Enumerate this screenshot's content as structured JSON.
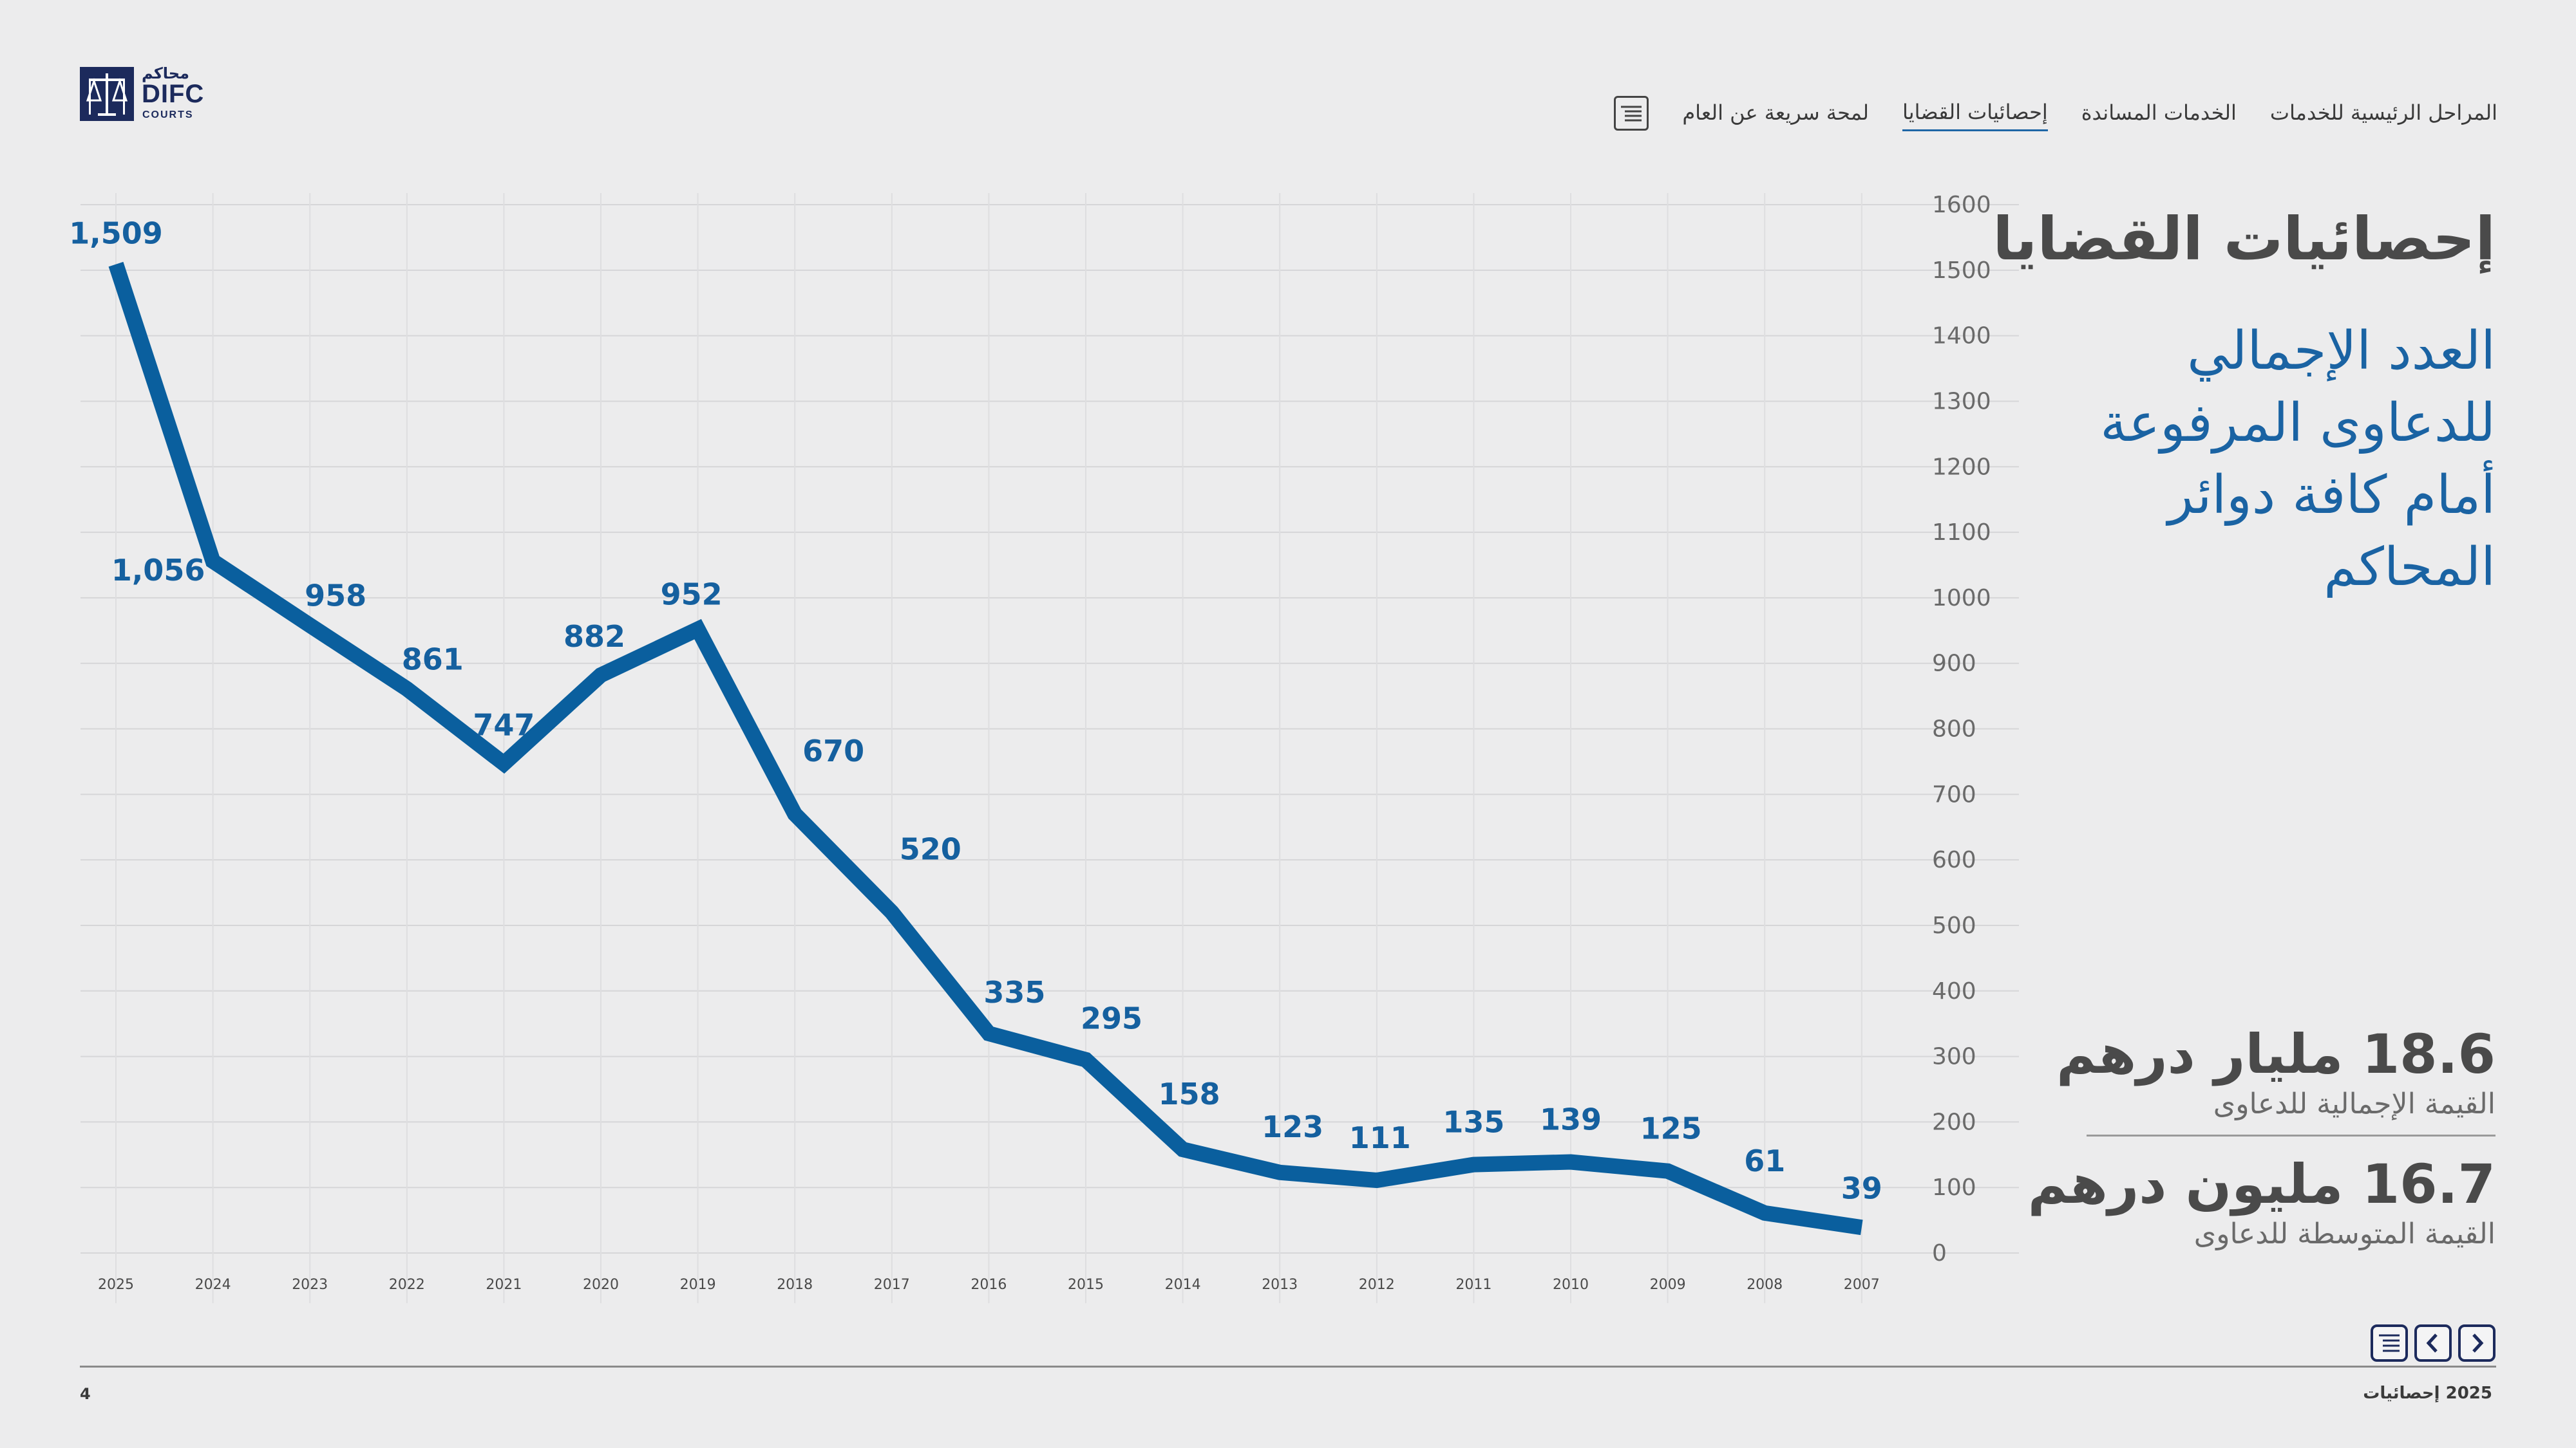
{
  "logo": {
    "arabic": "محاكم",
    "name": "DIFC",
    "sub": "COURTS"
  },
  "nav": {
    "items": [
      {
        "label": "لمحة سريعة عن العام",
        "active": false
      },
      {
        "label": "إحصائيات القضايا",
        "active": true
      },
      {
        "label": "الخدمات المساندة",
        "active": false
      },
      {
        "label": "المراحل الرئيسية للخدمات",
        "active": false
      }
    ]
  },
  "heading": "إحصائيات القضايا",
  "subheading": "العدد الإجمالي للدعاوى المرفوعة أمام كافة دوائر المحاكم",
  "stats": [
    {
      "value": "18.6 مليار درهم",
      "label": "القيمة الإجمالية للدعاوى"
    },
    {
      "value": "16.7 مليون درهم",
      "label": "القيمة المتوسطة للدعاوى"
    }
  ],
  "footer": {
    "page": "4",
    "label": "2025 إحصائيات"
  },
  "colors": {
    "line": "#0a5f9e",
    "label": "#15609f",
    "accent": "#1f66a6"
  },
  "chart_data": {
    "type": "line",
    "title": "العدد الإجمالي للدعاوى المرفوعة أمام كافة دوائر المحاكم",
    "x": [
      "2025",
      "2024",
      "2023",
      "2022",
      "2021",
      "2020",
      "2019",
      "2018",
      "2017",
      "2016",
      "2015",
      "2014",
      "2013",
      "2012",
      "2011",
      "2010",
      "2009",
      "2008",
      "2007"
    ],
    "values": [
      1509,
      1056,
      958,
      861,
      747,
      882,
      952,
      670,
      520,
      335,
      295,
      158,
      123,
      111,
      135,
      139,
      125,
      61,
      39
    ],
    "data_labels": [
      "1,509",
      "1,056",
      "958",
      "861",
      "747",
      "882",
      "952",
      "670",
      "520",
      "335",
      "295",
      "158",
      "123",
      "111",
      "135",
      "139",
      "125",
      "61",
      "39"
    ],
    "ylim": [
      0,
      1600
    ],
    "yticks": [
      0,
      100,
      200,
      300,
      400,
      500,
      600,
      700,
      800,
      900,
      1000,
      1100,
      1200,
      1300,
      1400,
      1500,
      1600
    ],
    "grid": true,
    "yaxis_position": "right",
    "xlabel": "",
    "ylabel": ""
  }
}
